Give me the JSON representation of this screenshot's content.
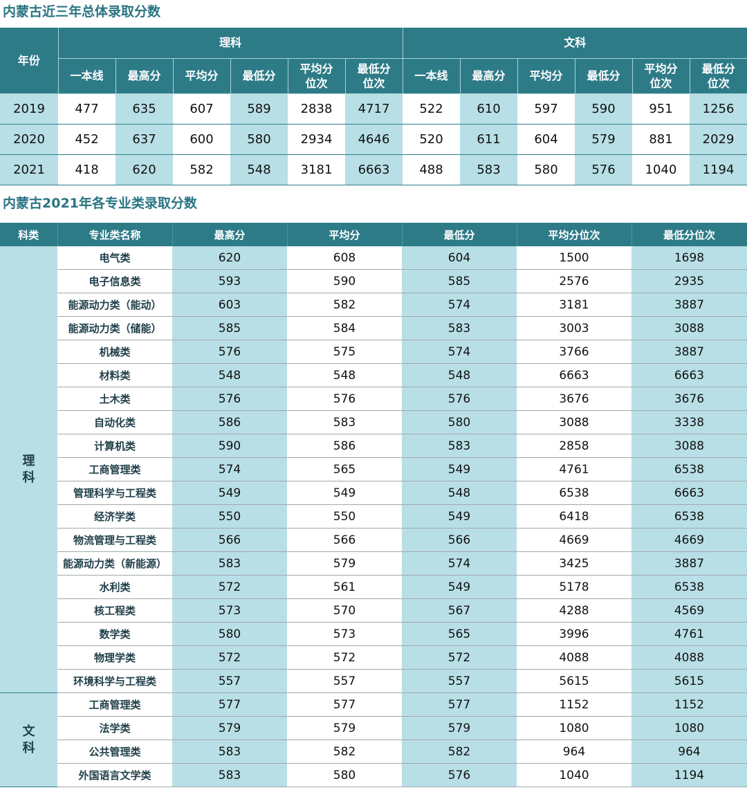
{
  "table1": {
    "title": "内蒙古近三年总体录取分数",
    "year_header": "年份",
    "groups": [
      "理科",
      "文科"
    ],
    "sub_headers": [
      [
        "一本线"
      ],
      [
        "最高分"
      ],
      [
        "平均分"
      ],
      [
        "最低分"
      ],
      [
        "平均分",
        "位次"
      ],
      [
        "最低分",
        "位次"
      ],
      [
        "一本线"
      ],
      [
        "最高分"
      ],
      [
        "平均分"
      ],
      [
        "最低分"
      ],
      [
        "平均分",
        "位次"
      ],
      [
        "最低分",
        "位次"
      ]
    ],
    "rows": [
      {
        "year": "2019",
        "values": [
          "477",
          "635",
          "607",
          "589",
          "2838",
          "4717",
          "522",
          "610",
          "597",
          "590",
          "951",
          "1256"
        ]
      },
      {
        "year": "2020",
        "values": [
          "452",
          "637",
          "600",
          "580",
          "2934",
          "4646",
          "520",
          "611",
          "604",
          "579",
          "881",
          "2029"
        ]
      },
      {
        "year": "2021",
        "values": [
          "418",
          "620",
          "582",
          "548",
          "3181",
          "6663",
          "488",
          "583",
          "580",
          "576",
          "1040",
          "1194"
        ]
      }
    ]
  },
  "table2": {
    "title": "内蒙古2021年各专业类录取分数",
    "headers": [
      "科类",
      "专业类名称",
      "最高分",
      "平均分",
      "最低分",
      "平均分位次",
      "最低分位次"
    ],
    "groups": [
      {
        "category": [
          "理",
          "科"
        ],
        "rows": [
          [
            "电气类",
            "620",
            "608",
            "604",
            "1500",
            "1698"
          ],
          [
            "电子信息类",
            "593",
            "590",
            "585",
            "2576",
            "2935"
          ],
          [
            "能源动力类（能动）",
            "603",
            "582",
            "574",
            "3181",
            "3887"
          ],
          [
            "能源动力类（储能）",
            "585",
            "584",
            "583",
            "3003",
            "3088"
          ],
          [
            "机械类",
            "576",
            "575",
            "574",
            "3766",
            "3887"
          ],
          [
            "材料类",
            "548",
            "548",
            "548",
            "6663",
            "6663"
          ],
          [
            "土木类",
            "576",
            "576",
            "576",
            "3676",
            "3676"
          ],
          [
            "自动化类",
            "586",
            "583",
            "580",
            "3088",
            "3338"
          ],
          [
            "计算机类",
            "590",
            "586",
            "583",
            "2858",
            "3088"
          ],
          [
            "工商管理类",
            "574",
            "565",
            "549",
            "4761",
            "6538"
          ],
          [
            "管理科学与工程类",
            "549",
            "549",
            "548",
            "6538",
            "6663"
          ],
          [
            "经济学类",
            "550",
            "550",
            "549",
            "6418",
            "6538"
          ],
          [
            "物流管理与工程类",
            "566",
            "566",
            "566",
            "4669",
            "4669"
          ],
          [
            "能源动力类（新能源）",
            "583",
            "579",
            "574",
            "3425",
            "3887"
          ],
          [
            "水利类",
            "572",
            "561",
            "549",
            "5178",
            "6538"
          ],
          [
            "核工程类",
            "573",
            "570",
            "567",
            "4288",
            "4569"
          ],
          [
            "数学类",
            "580",
            "573",
            "565",
            "3996",
            "4761"
          ],
          [
            "物理学类",
            "572",
            "572",
            "572",
            "4088",
            "4088"
          ],
          [
            "环境科学与工程类",
            "557",
            "557",
            "557",
            "5615",
            "5615"
          ]
        ]
      },
      {
        "category": [
          "文",
          "科"
        ],
        "rows": [
          [
            "工商管理类",
            "577",
            "577",
            "577",
            "1152",
            "1152"
          ],
          [
            "法学类",
            "579",
            "579",
            "579",
            "1080",
            "1080"
          ],
          [
            "公共管理类",
            "583",
            "582",
            "582",
            "964",
            "964"
          ],
          [
            "外国语言文学类",
            "583",
            "580",
            "576",
            "1040",
            "1194"
          ]
        ]
      }
    ]
  },
  "colors": {
    "header_bg": "#2e7b88",
    "shade": "#b8dfe6",
    "title_text": "#2a7582",
    "header_text": "#ffffff"
  }
}
